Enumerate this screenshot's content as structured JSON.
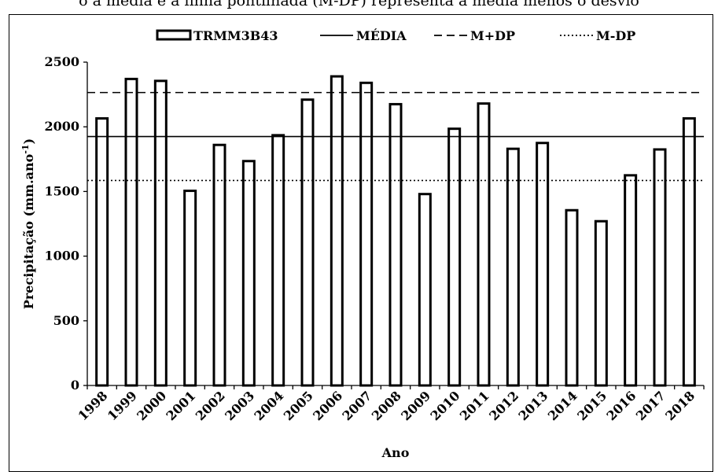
{
  "caption": "o a média e a linha pontilhada (M-DP) representa a média menos o desvio",
  "chart_data": {
    "type": "bar",
    "categories": [
      "1998",
      "1999",
      "2000",
      "2001",
      "2002",
      "2003",
      "2004",
      "2005",
      "2006",
      "2007",
      "2008",
      "2009",
      "2010",
      "2011",
      "2012",
      "2013",
      "2014",
      "2015",
      "2016",
      "2017",
      "2018"
    ],
    "series": [
      {
        "name": "TRMM3B43",
        "values": [
          2065,
          2370,
          2355,
          1505,
          1860,
          1735,
          1935,
          2210,
          2390,
          2340,
          2175,
          1480,
          1985,
          2180,
          1830,
          1875,
          1355,
          1270,
          1625,
          1825,
          2065
        ]
      }
    ],
    "reference_lines": [
      {
        "name": "MÉDIA",
        "value": 1925,
        "style": "solid"
      },
      {
        "name": "M+DP",
        "value": 2265,
        "style": "dashed"
      },
      {
        "name": "M-DP",
        "value": 1585,
        "style": "dotted"
      }
    ],
    "ylabel": "Precipitação (mm.ano⁻¹)",
    "xlabel": "Ano",
    "yticks": [
      0,
      500,
      1000,
      1500,
      2000,
      2500
    ],
    "ylim": [
      0,
      2500
    ],
    "grid": false,
    "legend_position": "top"
  }
}
